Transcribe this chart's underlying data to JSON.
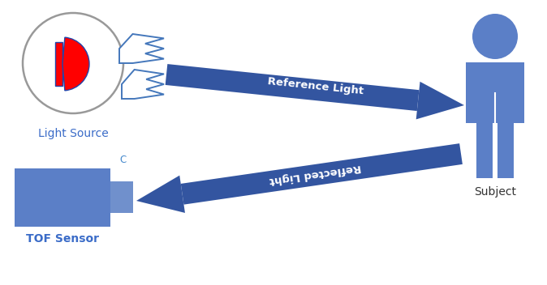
{
  "bg_color": "#ffffff",
  "arrow_color": "#3355A0",
  "figure_color": "#5B7FC7",
  "lens_color": "#7090CC",
  "circle_edge_color": "#999999",
  "red_color": "#ff0000",
  "d_edge_color": "#2244aa",
  "zigzag_color": "#4477bb",
  "light_source_label": "Light Source",
  "tof_label": "TOF Sensor",
  "subject_label": "Subject",
  "ref_label": "Reference Light",
  "refl_label": "Reflected Light",
  "label_color_blue": "#3B6CC8",
  "subject_label_color": "#333333",
  "label_fontsize": 10,
  "arrow_label_fontsize": 9.5,
  "c_label_color": "#4488cc"
}
